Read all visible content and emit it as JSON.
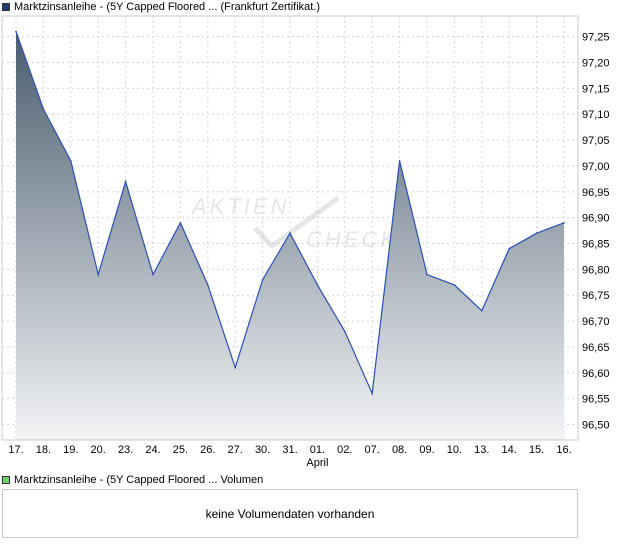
{
  "legend": {
    "price_label": "Marktzinsanleihe - (5Y Capped Floored ... (Frankfurt Zertifikat.)",
    "price_color": "#1f3a73",
    "volume_label": "Marktzinsanleihe - (5Y Capped Floored ... Volumen",
    "volume_color": "#6fcf6f"
  },
  "watermark": {
    "line1": "AKTIEN",
    "line2": "CHECK"
  },
  "volume_box": {
    "message": "keine Volumendaten vorhanden"
  },
  "chart_data": {
    "type": "area",
    "categories": [
      "17.",
      "18.",
      "19.",
      "20.",
      "23.",
      "24.",
      "25.",
      "26.",
      "27.",
      "30.",
      "31.",
      "01.",
      "02.",
      "07.",
      "08.",
      "09.",
      "10.",
      "13.",
      "14.",
      "15.",
      "16."
    ],
    "month_label": {
      "text": "April",
      "under_category": "01."
    },
    "values": [
      97.26,
      97.11,
      97.01,
      96.79,
      96.97,
      96.79,
      96.89,
      96.77,
      96.61,
      96.78,
      96.87,
      96.77,
      96.68,
      96.56,
      97.01,
      96.79,
      96.77,
      96.72,
      96.84,
      96.87,
      96.89
    ],
    "ylim": [
      96.47,
      97.29
    ],
    "yticks": [
      "97,25",
      "97,20",
      "97,15",
      "97,10",
      "97,05",
      "97,00",
      "96,95",
      "96,90",
      "96,85",
      "96,80",
      "96,75",
      "96,70",
      "96,65",
      "96,60",
      "96,55",
      "96,50"
    ],
    "ytick_values": [
      97.25,
      97.2,
      97.15,
      97.1,
      97.05,
      97.0,
      96.95,
      96.9,
      96.85,
      96.8,
      96.75,
      96.7,
      96.65,
      96.6,
      96.55,
      96.5
    ],
    "line_color": "#2a4fb5",
    "fill_top_color": "#4a5d6e",
    "fill_bottom_color": "#f3f4f6",
    "grid": true,
    "title": "",
    "xlabel": "",
    "ylabel": ""
  }
}
